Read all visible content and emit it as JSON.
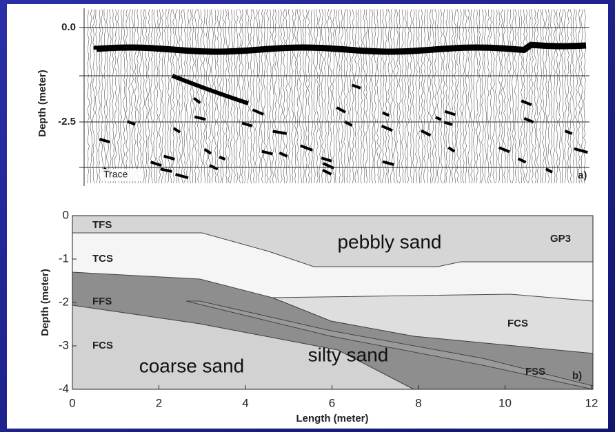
{
  "panel_a": {
    "y_label": "Depth (meter)",
    "yticks": [
      "0.0",
      "-2.5"
    ],
    "trace_label": "Trace",
    "panel_label": "a)"
  },
  "panel_b": {
    "y_label": "Depth (meter)",
    "x_label": "Length (meter)",
    "yticks": [
      "0",
      "-1",
      "-2",
      "-3",
      "-4"
    ],
    "xticks": [
      "0",
      "2",
      "4",
      "6",
      "8",
      "10",
      "12"
    ],
    "regions": [
      "TFS",
      "TCS",
      "FFS",
      "FCS",
      "GP3",
      "FCS",
      "FSS"
    ],
    "descriptions": [
      "pebbly sand",
      "coarse sand",
      "silty sand"
    ],
    "panel_label": "b)"
  }
}
